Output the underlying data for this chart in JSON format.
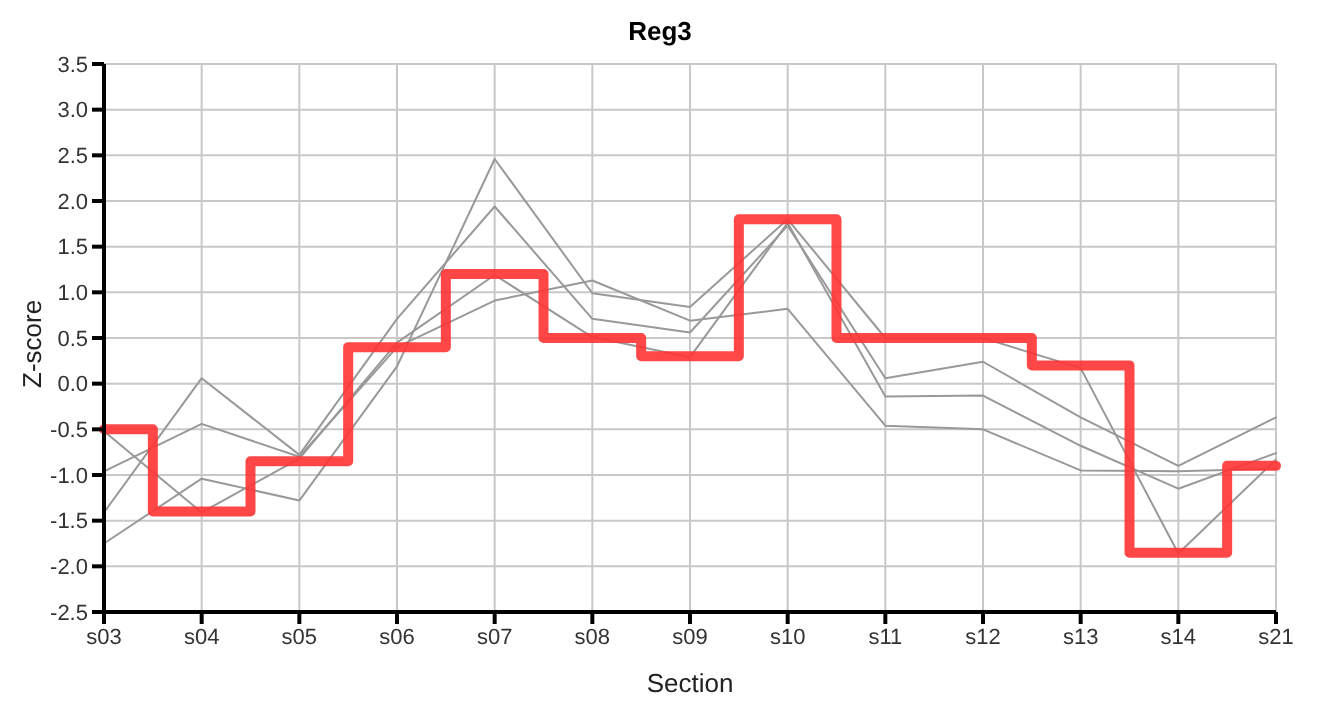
{
  "chart_data": {
    "type": "line",
    "title": "Reg3",
    "xlabel": "Section",
    "ylabel": "Z-score",
    "categories": [
      "s03",
      "s04",
      "s05",
      "s06",
      "s07",
      "s08",
      "s09",
      "s10",
      "s11",
      "s12",
      "s13",
      "s14",
      "s21"
    ],
    "series": [
      {
        "type": "line",
        "color": "#999999",
        "values": [
          -1.75,
          -1.04,
          -1.28,
          0.19,
          2.46,
          0.99,
          0.84,
          1.8,
          0.5,
          0.5,
          0.17,
          -1.86,
          -0.83
        ]
      },
      {
        "type": "line",
        "color": "#999999",
        "values": [
          -1.41,
          0.06,
          -0.78,
          0.71,
          1.94,
          0.71,
          0.56,
          1.73,
          0.06,
          0.24,
          -0.37,
          -0.9,
          -0.37
        ]
      },
      {
        "type": "line",
        "color": "#999999",
        "values": [
          -0.52,
          -1.41,
          -0.82,
          0.45,
          1.19,
          0.51,
          0.29,
          1.76,
          -0.14,
          -0.13,
          -0.68,
          -1.15,
          -0.76
        ]
      },
      {
        "type": "line",
        "color": "#999999",
        "values": [
          -0.96,
          -0.44,
          -0.8,
          0.4,
          0.91,
          1.13,
          0.69,
          0.82,
          -0.46,
          -0.5,
          -0.95,
          -0.96,
          -0.93
        ]
      },
      {
        "type": "step",
        "color": "#ff3333",
        "values": [
          -0.5,
          -1.4,
          -0.85,
          0.4,
          1.2,
          0.5,
          0.3,
          1.8,
          0.5,
          0.5,
          0.2,
          -1.85,
          -0.9
        ]
      }
    ],
    "ylim": [
      -2.5,
      3.5
    ],
    "yticks": [
      -2.5,
      {
        "value": -2,
        "label": "-2.0"
      },
      -1.5,
      {
        "value": -1,
        "label": "-1.0"
      },
      -0.5,
      {
        "value": 0,
        "label": "0.0"
      },
      0.5,
      {
        "value": 1,
        "label": "1.0"
      },
      1.5,
      {
        "value": 2,
        "label": "2.0"
      },
      2.5,
      {
        "value": 3,
        "label": "3.0"
      },
      3.5
    ],
    "grid": true,
    "legend": false,
    "marker": "none",
    "line_style": "solid"
  }
}
